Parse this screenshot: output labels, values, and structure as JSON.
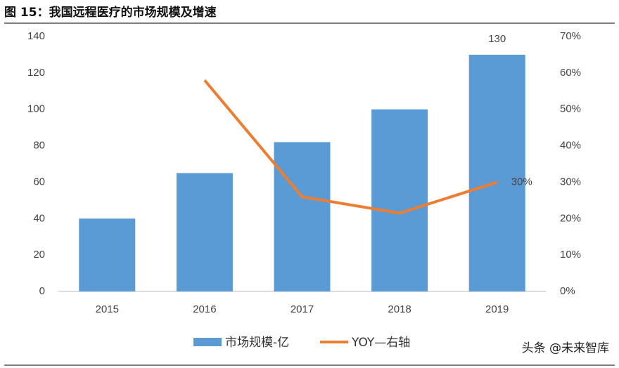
{
  "chart_data": {
    "type": "bar-line",
    "title": "图 15：我国远程医疗的市场规模及增速",
    "categories": [
      "2015",
      "2016",
      "2017",
      "2018",
      "2019"
    ],
    "series": [
      {
        "name": "市场规模-亿",
        "type": "bar",
        "color": "#5b9bd5",
        "values": [
          40,
          65,
          82,
          100,
          130
        ],
        "value_labels": [
          null,
          null,
          null,
          null,
          "130"
        ]
      },
      {
        "name": "YOY—右轴",
        "type": "line",
        "axis": "y2",
        "color": "#ed7d31",
        "values": [
          null,
          58,
          26,
          21.5,
          30
        ],
        "value_labels": [
          null,
          null,
          null,
          null,
          "30%"
        ]
      }
    ],
    "ylim": [
      0,
      140
    ],
    "yticks": [
      0,
      20,
      40,
      60,
      80,
      100,
      120,
      140
    ],
    "y2lim": [
      0,
      70
    ],
    "y2ticks": [
      {
        "value": 0,
        "label": "0%"
      },
      {
        "value": 10,
        "label": "10%"
      },
      {
        "value": 20,
        "label": "20%"
      },
      {
        "value": 30,
        "label": "30%"
      },
      {
        "value": 40,
        "label": "40%"
      },
      {
        "value": 50,
        "label": "50%"
      },
      {
        "value": 60,
        "label": "60%"
      },
      {
        "value": 70,
        "label": "70%"
      }
    ],
    "legend": "bottom",
    "watermark": "头条 @未来智库"
  }
}
